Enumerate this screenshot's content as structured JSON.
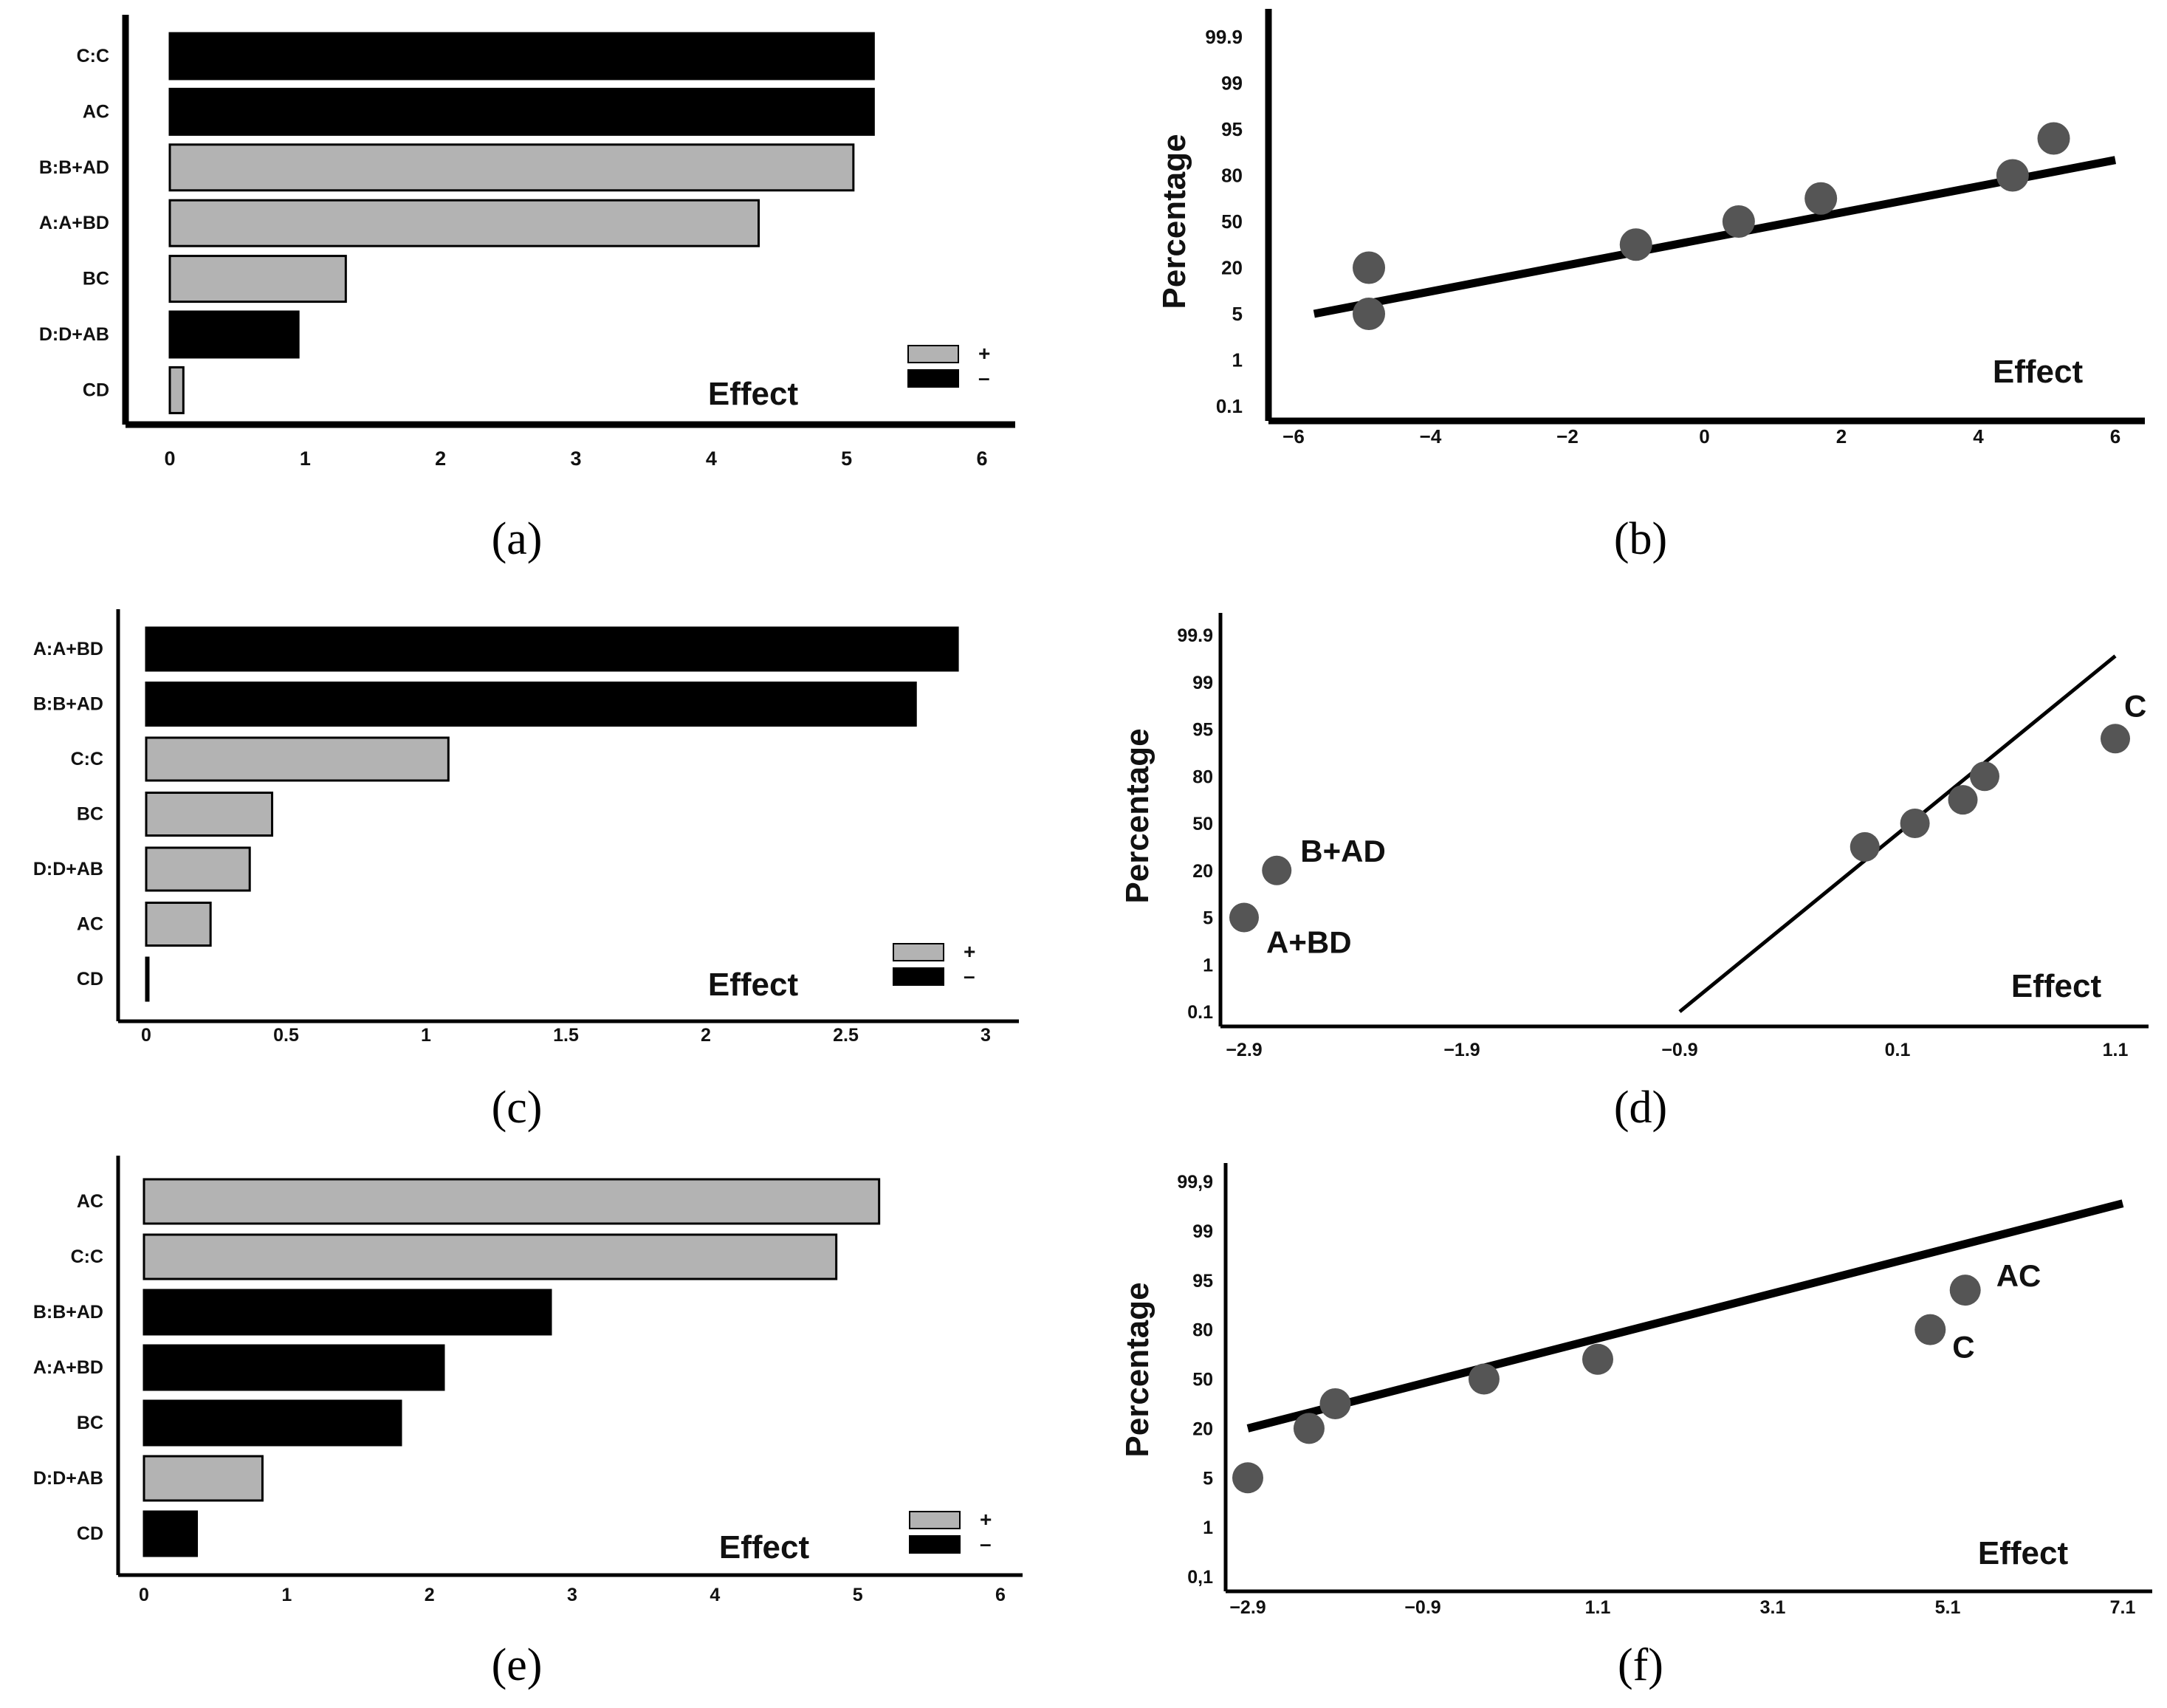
{
  "colors": {
    "black_bar": "#000000",
    "gray_bar": "#b3b3b3",
    "point": "#555555",
    "axis": "#000000"
  },
  "chart_data": [
    {
      "type": "bar",
      "panel": "a",
      "caption": "(a)",
      "orientation": "horizontal",
      "categories": [
        "C:C",
        "AC",
        "B:B+AD",
        "A:A+BD",
        "BC",
        "D:D+AB",
        "CD"
      ],
      "values": [
        5.2,
        5.2,
        5.05,
        4.35,
        1.3,
        0.95,
        0.1
      ],
      "signs": [
        "-",
        "-",
        "+",
        "+",
        "+",
        "-",
        "+"
      ],
      "xlim": [
        0,
        6
      ],
      "xticks": [
        "0",
        "1",
        "2",
        "3",
        "4",
        "5",
        "6"
      ],
      "xlabel": "Effect",
      "legend": [
        {
          "sign": "+",
          "label": "+"
        },
        {
          "sign": "-",
          "label": "–"
        }
      ],
      "legend_position": "bottom-right"
    },
    {
      "type": "scatter",
      "panel": "b",
      "caption": "(b)",
      "ylabel": "Percentage",
      "xlabel": "Effect",
      "xlim": [
        -6,
        6
      ],
      "xticks": [
        "−6",
        "−4",
        "−2",
        "0",
        "2",
        "4",
        "6"
      ],
      "yticks": [
        "99.9",
        "99",
        "95",
        "80",
        "50",
        "20",
        "5",
        "1",
        "0.1"
      ],
      "points": [
        {
          "x": -4.9,
          "y": 5,
          "label": ""
        },
        {
          "x": -4.9,
          "y": 20,
          "label": ""
        },
        {
          "x": -1.0,
          "y": 35,
          "label": ""
        },
        {
          "x": 0.5,
          "y": 50,
          "label": ""
        },
        {
          "x": 1.7,
          "y": 65,
          "label": ""
        },
        {
          "x": 4.5,
          "y": 80,
          "label": ""
        },
        {
          "x": 5.1,
          "y": 92,
          "label": ""
        }
      ],
      "fit_line": [
        {
          "x": -5.7,
          "y": 5
        },
        {
          "x": 6.0,
          "y": 85
        }
      ]
    },
    {
      "type": "bar",
      "panel": "c",
      "caption": "(c)",
      "orientation": "horizontal",
      "categories": [
        "A:A+BD",
        "B:B+AD",
        "C:C",
        "BC",
        "D:D+AB",
        "AC",
        "CD"
      ],
      "values": [
        2.9,
        2.75,
        1.08,
        0.45,
        0.37,
        0.23,
        0.0
      ],
      "signs": [
        "-",
        "-",
        "+",
        "+",
        "+",
        "+",
        "+"
      ],
      "xlim": [
        0,
        3
      ],
      "xticks": [
        "0",
        "0.5",
        "1",
        "1.5",
        "2",
        "2.5",
        "3"
      ],
      "xlabel": "Effect",
      "legend": [
        {
          "sign": "+",
          "label": "+"
        },
        {
          "sign": "-",
          "label": "–"
        }
      ],
      "legend_position": "bottom-right"
    },
    {
      "type": "scatter",
      "panel": "d",
      "caption": "(d)",
      "ylabel": "Percentage",
      "xlabel": "Effect",
      "xlim": [
        -2.9,
        1.1
      ],
      "xticks": [
        "−2.9",
        "−1.9",
        "−0.9",
        "0.1",
        "1.1"
      ],
      "yticks": [
        "99.9",
        "99",
        "95",
        "80",
        "50",
        "20",
        "5",
        "1",
        "0.1"
      ],
      "points": [
        {
          "x": -2.9,
          "y": 5,
          "label": "A+BD"
        },
        {
          "x": -2.75,
          "y": 20,
          "label": "B+AD"
        },
        {
          "x": -0.05,
          "y": 35,
          "label": ""
        },
        {
          "x": 0.18,
          "y": 50,
          "label": ""
        },
        {
          "x": 0.4,
          "y": 65,
          "label": ""
        },
        {
          "x": 0.5,
          "y": 80,
          "label": ""
        },
        {
          "x": 1.1,
          "y": 92,
          "label": "C"
        }
      ],
      "fit_line": [
        {
          "x": -0.9,
          "y": 0.1
        },
        {
          "x": 1.1,
          "y": 99.5
        }
      ]
    },
    {
      "type": "bar",
      "panel": "e",
      "caption": "(e)",
      "orientation": "horizontal",
      "categories": [
        "AC",
        "C:C",
        "B:B+AD",
        "A:A+BD",
        "BC",
        "D:D+AB",
        "CD"
      ],
      "values": [
        5.15,
        4.85,
        2.85,
        2.1,
        1.8,
        0.83,
        0.37
      ],
      "signs": [
        "+",
        "+",
        "-",
        "-",
        "-",
        "+",
        "-"
      ],
      "xlim": [
        0,
        6
      ],
      "xticks": [
        "0",
        "1",
        "2",
        "3",
        "4",
        "5",
        "6"
      ],
      "xlabel": "Effect",
      "legend": [
        {
          "sign": "+",
          "label": "+"
        },
        {
          "sign": "-",
          "label": "–"
        }
      ],
      "legend_position": "bottom-right"
    },
    {
      "type": "scatter",
      "panel": "f",
      "caption": "(f)",
      "ylabel": "Percentage",
      "xlabel": "Effect",
      "xlim": [
        -2.9,
        7.1
      ],
      "xticks": [
        "−2.9",
        "−0.9",
        "1.1",
        "3.1",
        "5.1",
        "7.1"
      ],
      "yticks": [
        "99,9",
        "99",
        "95",
        "80",
        "50",
        "20",
        "5",
        "1",
        "0,1"
      ],
      "points": [
        {
          "x": -2.9,
          "y": 5,
          "label": ""
        },
        {
          "x": -2.2,
          "y": 20,
          "label": ""
        },
        {
          "x": -1.9,
          "y": 35,
          "label": ""
        },
        {
          "x": -0.2,
          "y": 50,
          "label": ""
        },
        {
          "x": 1.1,
          "y": 62,
          "label": ""
        },
        {
          "x": 4.9,
          "y": 80,
          "label": "C"
        },
        {
          "x": 5.3,
          "y": 92,
          "label": "AC"
        }
      ],
      "fit_line": [
        {
          "x": -2.9,
          "y": 20
        },
        {
          "x": 7.1,
          "y": 99.5
        }
      ]
    }
  ]
}
